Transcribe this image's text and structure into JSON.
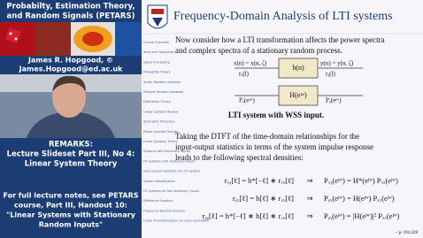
{
  "sidebar": {
    "title_lines": [
      "Probabilty, Estimation Theory,",
      "and Random Signals (PETARS)"
    ],
    "author": "James R. Hopgood, ©",
    "email": "James.Hopgood@ed.ac.uk",
    "remarks_lines": [
      "REMARKS:",
      "Lecture Slideset Part III, No 4:",
      "Linear System Theory"
    ],
    "notes_lines": [
      "For full lecture notes, see PETARS",
      "course, Part III, Handout 10:",
      "\"Linear Systems with Stationary",
      "Random Inputs\""
    ]
  },
  "slide": {
    "title": "Frequency-Domain Analysis of LTI systems",
    "nav": [
      "Course Overview",
      "Aims and Objectives",
      "Signal Processing",
      "Probability Theory",
      "Scalar Random Variables",
      "Multiple Random Variables",
      "Estimation Theory",
      "Linear Systems Review",
      "Stochastic Processes",
      "Power Spectral Density",
      "Linear Systems Theory",
      "Systems with Stochastic Inputs",
      "LTI Systems with Stationary Inputs",
      "Input-output statistics of a LTI System",
      "System identification",
      "LTI Systems on Non-stationary Inputs",
      "Difference Equation",
      "Frequency-Domain Analysis",
      "Linear Transformations via cross-correlation"
    ],
    "intro_lines": [
      "Now consider how a LTI transformation affects the power spectra",
      "and complex spectra of a stationary random process."
    ],
    "diagram": {
      "top_box": "h(n)",
      "top_in": "x(n) = x(n, ζ)",
      "top_in_sub": "rₓ(l)",
      "top_out": "y(n) = y(n, ζ)",
      "top_out_sub": "rᵧ(l)",
      "bottom_box": "H(eʲʷ)",
      "bottom_in": "Pₓ(eʲʷ)",
      "bottom_out": "Pᵧ(eʲʷ)",
      "caption": "LTI system with WSS input."
    },
    "body_lines": [
      "Taking the DTFT of the time-domain relationships for the",
      "input-output statistics in terms of the system impulse response",
      "leads to the following spectral densities:"
    ],
    "equations": [
      [
        "rₓᵧ[ℓ] = h*[−ℓ] ∗ rₓₓ[ℓ]",
        "⇒",
        "Pₓᵧ(eʲʷ) = H*(eʲʷ) Pₓₓ(eʲʷ)"
      ],
      [
        "rᵧₓ[ℓ] = h[ℓ] ∗ rₓₓ[ℓ]",
        "⇒",
        "Pᵧₓ(eʲʷ) = H(eʲʷ) Pₓₓ(eʲʷ)"
      ],
      [
        "rᵧᵧ[ℓ] = h*[−ℓ] ∗ h[ℓ] ∗ rₓₓ[ℓ]",
        "⇒",
        "Pᵧᵧ(eʲʷ) = |H(eʲʷ)|² Pₓₓ(eʲʷ)"
      ]
    ],
    "footer": "– p. 191/228"
  }
}
